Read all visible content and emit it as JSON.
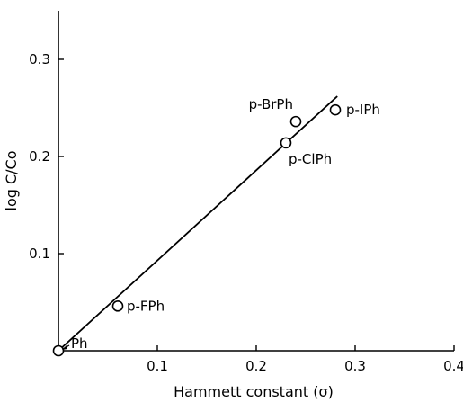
{
  "chart_data": {
    "type": "scatter",
    "title": "",
    "xlabel": "Hammett constant (σ)",
    "ylabel": "log C/Co",
    "xlim": [
      0,
      0.4
    ],
    "ylim": [
      0,
      0.35
    ],
    "x_ticks": [
      {
        "value": 0.1,
        "label": "0.1"
      },
      {
        "value": 0.2,
        "label": "0.2"
      },
      {
        "value": 0.3,
        "label": "0.3"
      },
      {
        "value": 0.4,
        "label": "0.4"
      }
    ],
    "y_ticks": [
      {
        "value": 0.1,
        "label": "0.1"
      },
      {
        "value": 0.2,
        "label": "0.2"
      },
      {
        "value": 0.3,
        "label": "0.3"
      }
    ],
    "grid": false,
    "series": [
      {
        "marker": "open-circle",
        "points": [
          {
            "label": "Ph",
            "x": 0.0,
            "y": 0.0
          },
          {
            "label": "p-FPh",
            "x": 0.06,
            "y": 0.046
          },
          {
            "label": "p-ClPh",
            "x": 0.23,
            "y": 0.214
          },
          {
            "label": "p-BrPh",
            "x": 0.24,
            "y": 0.236
          },
          {
            "label": "p-IPh",
            "x": 0.28,
            "y": 0.248
          }
        ]
      }
    ],
    "fit_line": {
      "x": [
        0.0,
        0.282
      ],
      "y": [
        0.0,
        0.262
      ]
    }
  }
}
